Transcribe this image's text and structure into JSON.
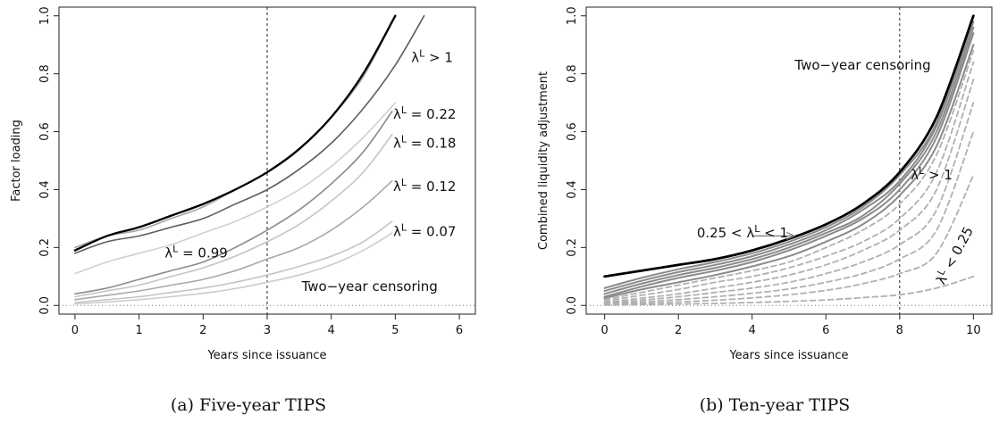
{
  "chart_data": [
    {
      "type": "line",
      "caption": "(a)  Five-year TIPS",
      "xlabel": "Years since issuance",
      "ylabel": "Factor loading",
      "xlim": [
        -0.25,
        6.25
      ],
      "ylim": [
        -0.03,
        1.03
      ],
      "xticks": [
        0,
        1,
        2,
        3,
        4,
        5,
        6
      ],
      "yticks": [
        "0.0",
        "0.2",
        "0.4",
        "0.6",
        "0.8",
        "1.0"
      ],
      "vline": 3,
      "hline": 0,
      "annotations": [
        {
          "text": "λL > 1",
          "x": 5.9,
          "y": 0.84,
          "color": "#111111"
        },
        {
          "text": "λL = 0.22",
          "x": 5.95,
          "y": 0.645,
          "color": "#111111"
        },
        {
          "text": "λL = 0.18",
          "x": 5.95,
          "y": 0.545,
          "color": "#111111"
        },
        {
          "text": "λL = 0.12",
          "x": 5.95,
          "y": 0.395,
          "color": "#111111"
        },
        {
          "text": "λL = 0.07",
          "x": 5.95,
          "y": 0.24,
          "color": "#111111"
        },
        {
          "text": "λL = 0.99",
          "x": 1.4,
          "y": 0.165,
          "color": "#111111"
        },
        {
          "text": "Two−year censoring",
          "x": 4.6,
          "y": 0.05,
          "color": "#111111"
        }
      ],
      "series": [
        {
          "color": "#000000",
          "width": 2.2,
          "dash": "",
          "x": [
            0,
            0.5,
            1,
            1.5,
            2,
            2.5,
            3,
            3.5,
            4,
            4.5,
            5
          ],
          "y": [
            0.19,
            0.24,
            0.27,
            0.31,
            0.35,
            0.4,
            0.46,
            0.54,
            0.65,
            0.8,
            1.0
          ]
        },
        {
          "color": "#a6a6a6",
          "width": 1.6,
          "dash": "",
          "x": [
            0,
            0.5,
            1,
            1.5,
            2,
            2.5,
            3,
            3.5,
            4,
            4.5,
            5
          ],
          "y": [
            0.2,
            0.24,
            0.26,
            0.3,
            0.34,
            0.4,
            0.46,
            0.54,
            0.65,
            0.79,
            1.0
          ]
        },
        {
          "color": "#5e5e5e",
          "width": 1.6,
          "dash": "",
          "x": [
            0,
            0.5,
            1,
            1.5,
            2,
            2.5,
            3,
            3.5,
            4,
            4.5,
            5,
            5.45
          ],
          "y": [
            0.18,
            0.22,
            0.24,
            0.27,
            0.3,
            0.35,
            0.4,
            0.47,
            0.56,
            0.68,
            0.83,
            1.0
          ]
        },
        {
          "color": "#d0d0d0",
          "width": 1.6,
          "dash": "",
          "x": [
            0,
            0.5,
            1,
            1.5,
            2,
            2.5,
            3,
            3.5,
            4,
            4.5,
            5
          ],
          "y": [
            0.11,
            0.15,
            0.18,
            0.21,
            0.25,
            0.29,
            0.34,
            0.4,
            0.48,
            0.58,
            0.7
          ]
        },
        {
          "color": "#8c8c8c",
          "width": 1.6,
          "dash": "",
          "x": [
            0,
            0.5,
            1,
            1.5,
            2,
            2.5,
            3,
            3.5,
            4,
            4.5,
            4.95
          ],
          "y": [
            0.04,
            0.06,
            0.09,
            0.12,
            0.15,
            0.2,
            0.26,
            0.33,
            0.42,
            0.53,
            0.67
          ]
        },
        {
          "color": "#c4c4c4",
          "width": 1.6,
          "dash": "",
          "x": [
            0,
            0.5,
            1,
            1.5,
            2,
            2.5,
            3,
            3.5,
            4,
            4.5,
            4.95
          ],
          "y": [
            0.03,
            0.05,
            0.07,
            0.1,
            0.13,
            0.17,
            0.22,
            0.28,
            0.36,
            0.46,
            0.59
          ]
        },
        {
          "color": "#a8a8a8",
          "width": 1.6,
          "dash": "",
          "x": [
            0,
            0.5,
            1,
            1.5,
            2,
            2.5,
            3,
            3.5,
            4,
            4.5,
            4.95
          ],
          "y": [
            0.02,
            0.035,
            0.05,
            0.07,
            0.09,
            0.12,
            0.16,
            0.2,
            0.26,
            0.34,
            0.43
          ]
        },
        {
          "color": "#c4c4c4",
          "width": 1.6,
          "dash": "",
          "x": [
            0,
            0.5,
            1,
            1.5,
            2,
            2.5,
            3,
            3.5,
            4,
            4.5,
            4.95
          ],
          "y": [
            0.01,
            0.02,
            0.03,
            0.045,
            0.06,
            0.08,
            0.105,
            0.135,
            0.17,
            0.22,
            0.29
          ]
        },
        {
          "color": "#cccccc",
          "width": 1.6,
          "dash": "",
          "x": [
            0,
            0.5,
            1,
            1.5,
            2,
            2.5,
            3,
            3.5,
            4,
            4.5,
            4.95
          ],
          "y": [
            0.005,
            0.012,
            0.02,
            0.03,
            0.042,
            0.058,
            0.08,
            0.105,
            0.14,
            0.19,
            0.25
          ]
        }
      ]
    },
    {
      "type": "line",
      "caption": "(b)  Ten-year TIPS",
      "xlabel": "Years since issuance",
      "ylabel": "Combined liquidity adjustment",
      "xlim": [
        -0.5,
        10.5
      ],
      "ylim": [
        -0.03,
        1.03
      ],
      "xticks": [
        0,
        2,
        4,
        6,
        8,
        10
      ],
      "yticks": [
        "0.0",
        "0.2",
        "0.4",
        "0.6",
        "0.8",
        "1.0"
      ],
      "vline": 8,
      "hline": 0,
      "annotations": [
        {
          "text": "Two−year censoring",
          "x": 7.0,
          "y": 0.815,
          "color": "#111111"
        },
        {
          "text": "λL > 1",
          "x": 8.3,
          "y": 0.435,
          "color": "#111111"
        },
        {
          "text": "0.25 < λL < 1",
          "x": 2.5,
          "y": 0.235,
          "color": "#8c8c8c"
        },
        {
          "text": "λL < 0.25",
          "x": 9.6,
          "y": 0.165,
          "color": "#b4b4b4"
        }
      ],
      "arrow": {
        "x1": 4.0,
        "y1": 0.24,
        "x2": 5.15,
        "y2": 0.24,
        "color": "#7a7a7a"
      },
      "series": [
        {
          "color": "#000000",
          "width": 2.6,
          "dash": "",
          "x": [
            0,
            1,
            2,
            3,
            4,
            5,
            6,
            7,
            8,
            9,
            10
          ],
          "y": [
            0.1,
            0.12,
            0.14,
            0.16,
            0.19,
            0.23,
            0.28,
            0.35,
            0.46,
            0.65,
            1.0
          ]
        },
        {
          "color": "#8a8a8a",
          "width": 2.0,
          "dash": "",
          "x": [
            0,
            1,
            2,
            3,
            4,
            5,
            6,
            7,
            8,
            9,
            10
          ],
          "y": [
            0.06,
            0.095,
            0.125,
            0.15,
            0.18,
            0.22,
            0.27,
            0.34,
            0.45,
            0.63,
            1.0
          ]
        },
        {
          "color": "#8a8a8a",
          "width": 2.0,
          "dash": "",
          "x": [
            0,
            1,
            2,
            3,
            4,
            5,
            6,
            7,
            8,
            9,
            10
          ],
          "y": [
            0.05,
            0.085,
            0.115,
            0.14,
            0.17,
            0.21,
            0.26,
            0.33,
            0.43,
            0.62,
            0.98
          ]
        },
        {
          "color": "#8a8a8a",
          "width": 2.0,
          "dash": "",
          "x": [
            0,
            1,
            2,
            3,
            4,
            5,
            6,
            7,
            8,
            9,
            10
          ],
          "y": [
            0.04,
            0.075,
            0.105,
            0.13,
            0.16,
            0.2,
            0.25,
            0.31,
            0.42,
            0.6,
            0.96
          ]
        },
        {
          "color": "#8a8a8a",
          "width": 2.0,
          "dash": "",
          "x": [
            0,
            1,
            2,
            3,
            4,
            5,
            6,
            7,
            8,
            9,
            10
          ],
          "y": [
            0.03,
            0.065,
            0.095,
            0.12,
            0.15,
            0.19,
            0.24,
            0.3,
            0.4,
            0.58,
            0.94
          ]
        },
        {
          "color": "#8a8a8a",
          "width": 2.0,
          "dash": "",
          "x": [
            0,
            1,
            2,
            3,
            4,
            5,
            6,
            7,
            8,
            9,
            10
          ],
          "y": [
            0.025,
            0.055,
            0.08,
            0.105,
            0.135,
            0.17,
            0.22,
            0.28,
            0.38,
            0.55,
            0.9
          ]
        },
        {
          "color": "#b0b0b0",
          "width": 1.8,
          "dash": "6,4",
          "x": [
            0,
            1,
            2,
            3,
            4,
            5,
            6,
            7,
            8,
            9,
            10
          ],
          "y": [
            0.02,
            0.045,
            0.07,
            0.095,
            0.12,
            0.15,
            0.2,
            0.26,
            0.35,
            0.52,
            0.88
          ]
        },
        {
          "color": "#b0b0b0",
          "width": 1.8,
          "dash": "6,4",
          "x": [
            0,
            1,
            2,
            3,
            4,
            5,
            6,
            7,
            8,
            9,
            10
          ],
          "y": [
            0.015,
            0.035,
            0.055,
            0.08,
            0.1,
            0.13,
            0.17,
            0.22,
            0.3,
            0.46,
            0.84
          ]
        },
        {
          "color": "#b0b0b0",
          "width": 1.8,
          "dash": "6,4",
          "x": [
            0,
            1,
            2,
            3,
            4,
            5,
            6,
            7,
            8,
            9,
            10
          ],
          "y": [
            0.01,
            0.025,
            0.04,
            0.06,
            0.08,
            0.105,
            0.14,
            0.19,
            0.26,
            0.4,
            0.78
          ]
        },
        {
          "color": "#b0b0b0",
          "width": 1.8,
          "dash": "6,4",
          "x": [
            0,
            1,
            2,
            3,
            4,
            5,
            6,
            7,
            8,
            9,
            10
          ],
          "y": [
            0.008,
            0.018,
            0.03,
            0.045,
            0.06,
            0.08,
            0.11,
            0.15,
            0.21,
            0.33,
            0.7
          ]
        },
        {
          "color": "#b0b0b0",
          "width": 1.8,
          "dash": "6,4",
          "x": [
            0,
            1,
            2,
            3,
            4,
            5,
            6,
            7,
            8,
            9,
            10
          ],
          "y": [
            0.005,
            0.012,
            0.02,
            0.03,
            0.042,
            0.057,
            0.08,
            0.11,
            0.16,
            0.26,
            0.6
          ]
        },
        {
          "color": "#b0b0b0",
          "width": 1.8,
          "dash": "6,4",
          "x": [
            0,
            1,
            2,
            3,
            4,
            5,
            6,
            7,
            8,
            9,
            10
          ],
          "y": [
            0.003,
            0.007,
            0.012,
            0.018,
            0.026,
            0.037,
            0.052,
            0.075,
            0.11,
            0.18,
            0.45
          ]
        },
        {
          "color": "#b0b0b0",
          "width": 1.8,
          "dash": "6,4",
          "x": [
            0,
            1,
            2,
            3,
            4,
            5,
            6,
            7,
            8,
            9,
            10
          ],
          "y": [
            0.001,
            0.003,
            0.005,
            0.007,
            0.01,
            0.014,
            0.019,
            0.027,
            0.037,
            0.06,
            0.1
          ]
        }
      ]
    }
  ]
}
